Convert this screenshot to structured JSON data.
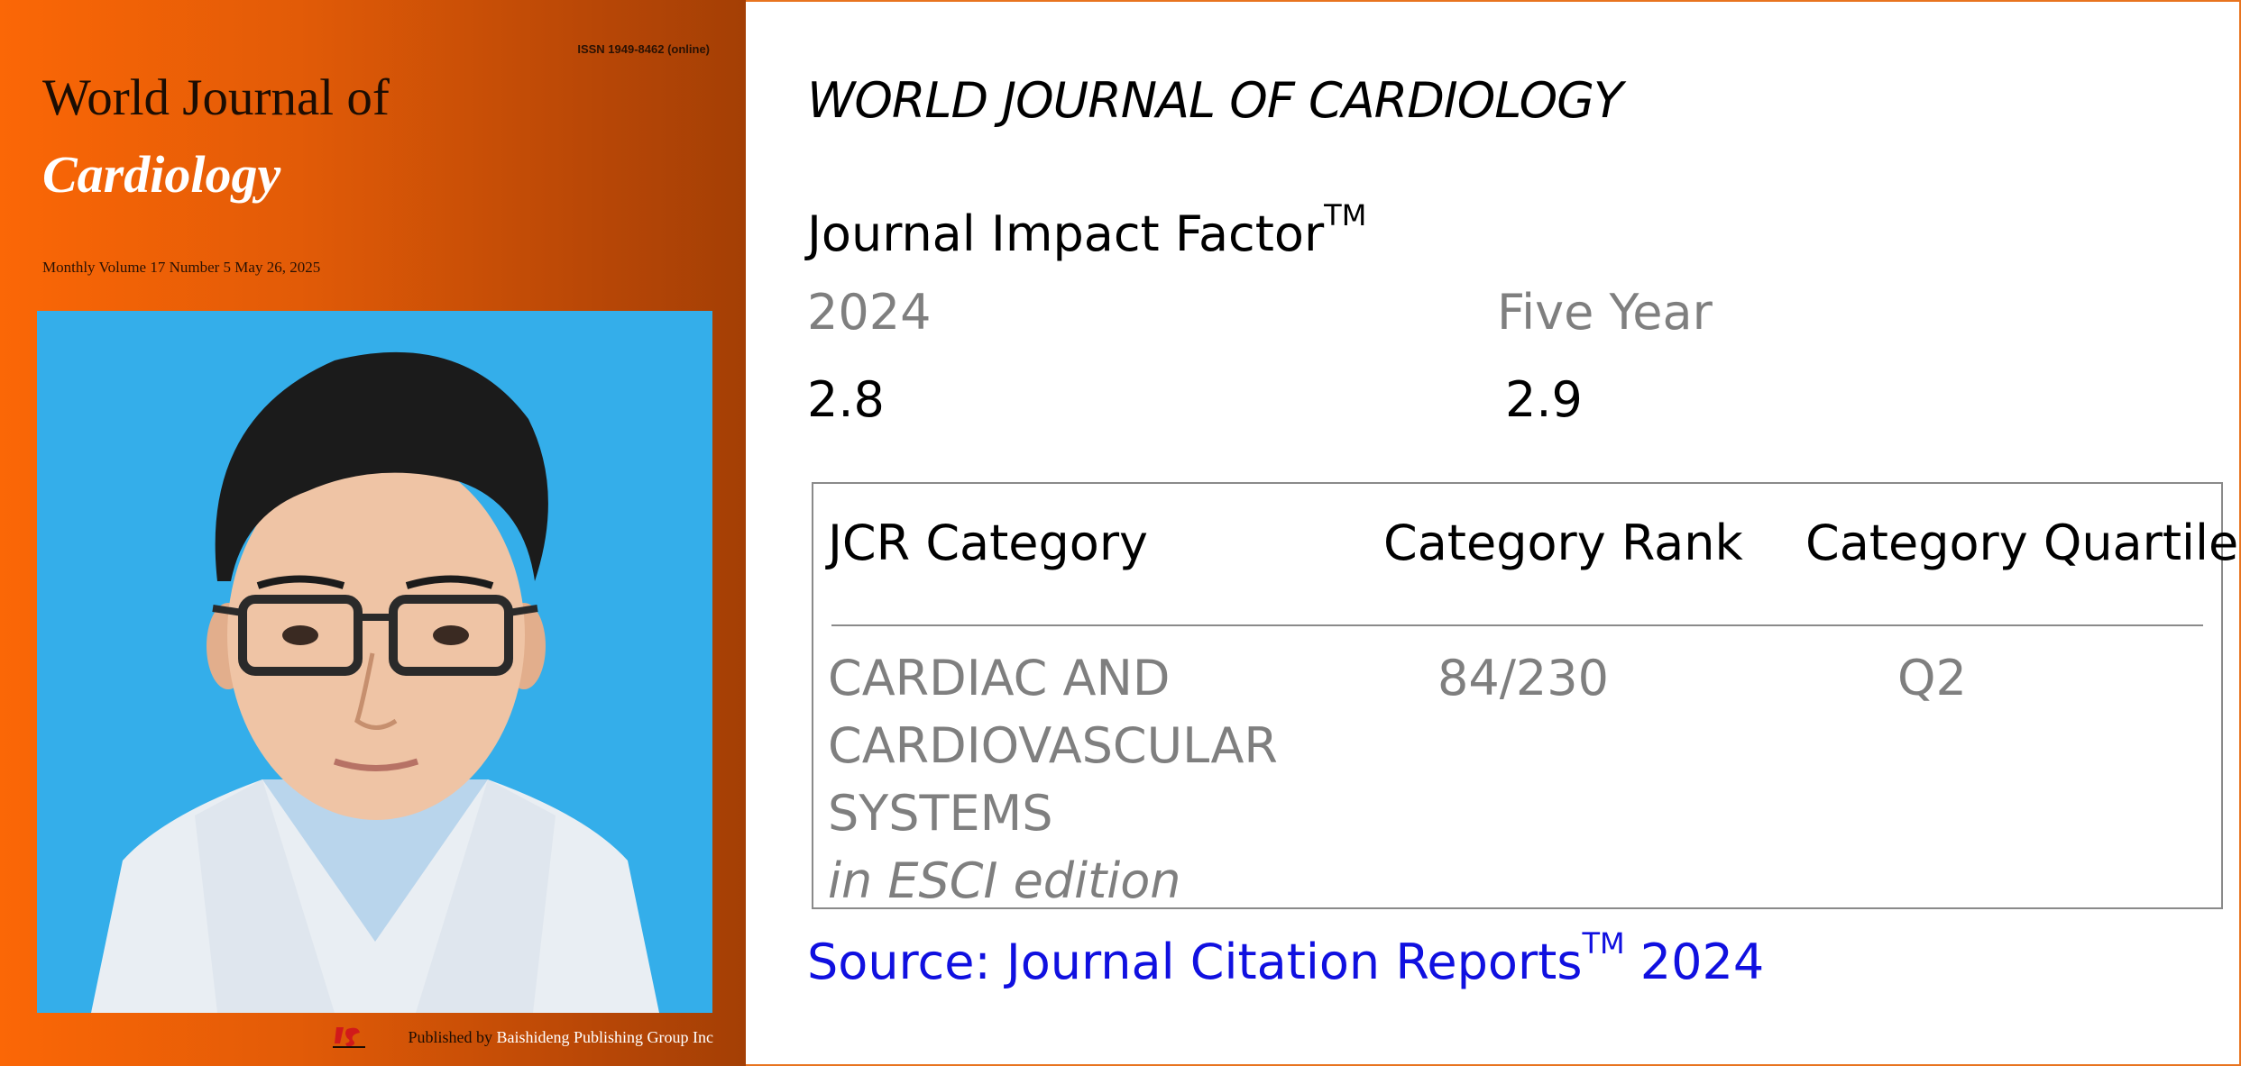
{
  "cover": {
    "issn": "ISSN 1949-8462 (online)",
    "title_line1": "World Journal of",
    "title_line2": "Cardiology",
    "volume_line": "Monthly Volume 17 Number 5 May 26, 2025",
    "published_by": "Published by",
    "publisher_name": "Baishideng Publishing Group Inc"
  },
  "info": {
    "journal_title": "WORLD JOURNAL OF CARDIOLOGY",
    "impact_factor_label": "Journal Impact Factor",
    "trademark": "TM",
    "year_label": "2024",
    "five_year_label": "Five Year",
    "year_value": "2.8",
    "five_year_value": "2.9"
  },
  "jcr": {
    "headers": [
      "JCR Category",
      "Category Rank",
      "Category Quartile"
    ],
    "category_lines": [
      "CARDIAC AND",
      "CARDIOVASCULAR",
      "SYSTEMS"
    ],
    "edition": "in ESCI edition",
    "rank": "84/230",
    "quartile": "Q2"
  },
  "source": {
    "text": "Source: Journal Citation Reports",
    "trademark": "TM",
    "year": " 2024"
  },
  "colors": {
    "cover_orange": "#fb6706",
    "cover_dark": "#a43f05",
    "photo_bg": "#34aeea",
    "source_blue": "#1010e0",
    "muted_gray": "#7f7f7f"
  }
}
